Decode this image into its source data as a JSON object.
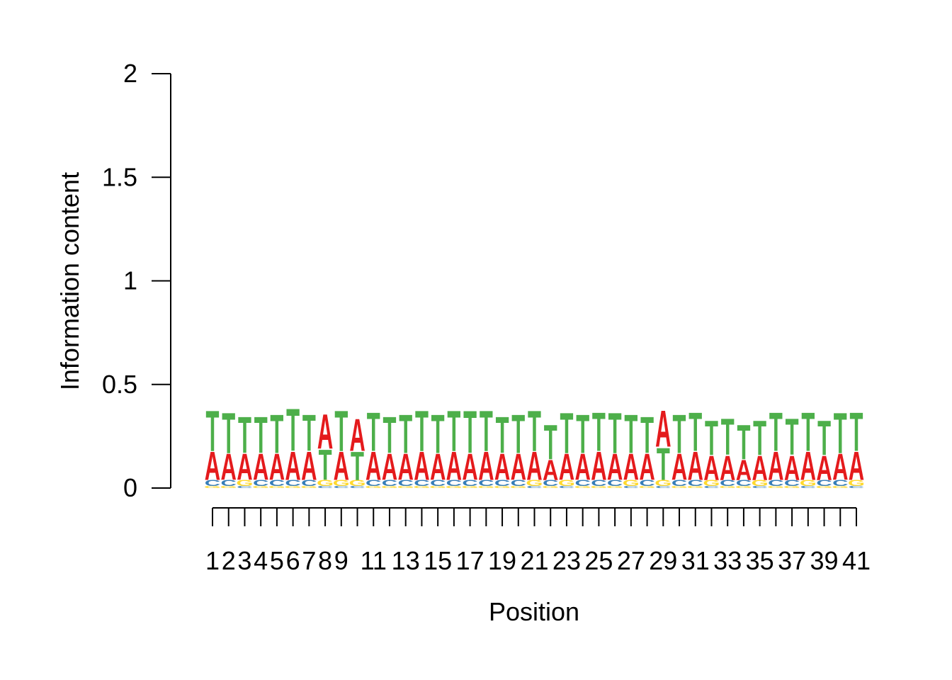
{
  "chart_data": {
    "type": "sequence-logo",
    "xlabel": "Position",
    "ylabel": "Information content",
    "ylim": [
      0,
      2
    ],
    "y_ticks": [
      "0",
      "0.5",
      "1",
      "1.5",
      "2"
    ],
    "x_tick_labels": [
      "1",
      "2",
      "3",
      "4",
      "5",
      "6",
      "7",
      "8",
      "9",
      "11",
      "13",
      "15",
      "17",
      "19",
      "21",
      "23",
      "25",
      "27",
      "29",
      "31",
      "33",
      "35",
      "37",
      "39",
      "41"
    ],
    "positions": [
      1,
      2,
      3,
      4,
      5,
      6,
      7,
      8,
      9,
      10,
      11,
      12,
      13,
      14,
      15,
      16,
      17,
      18,
      19,
      20,
      21,
      22,
      23,
      24,
      25,
      26,
      27,
      28,
      29,
      30,
      31,
      32,
      33,
      34,
      35,
      36,
      37,
      38,
      39,
      40,
      41
    ],
    "colors": {
      "A": "#e41a1c",
      "T": "#4daf4a",
      "C": "#377eb8",
      "G": "#ffd92f"
    },
    "letter_heights": [
      {
        "G": 0.01,
        "C": 0.03,
        "A": 0.14,
        "T": 0.2
      },
      {
        "G": 0.01,
        "C": 0.03,
        "A": 0.13,
        "T": 0.2
      },
      {
        "C": 0.01,
        "G": 0.03,
        "A": 0.13,
        "T": 0.18
      },
      {
        "G": 0.01,
        "C": 0.03,
        "A": 0.13,
        "T": 0.18
      },
      {
        "G": 0.01,
        "C": 0.03,
        "A": 0.13,
        "T": 0.19
      },
      {
        "G": 0.01,
        "C": 0.03,
        "A": 0.14,
        "T": 0.21
      },
      {
        "G": 0.01,
        "C": 0.03,
        "A": 0.14,
        "T": 0.18
      },
      {
        "C": 0.01,
        "G": 0.03,
        "T": 0.15,
        "A": 0.17
      },
      {
        "C": 0.01,
        "G": 0.03,
        "A": 0.14,
        "T": 0.2
      },
      {
        "C": 0.01,
        "G": 0.03,
        "T": 0.14,
        "A": 0.16
      },
      {
        "G": 0.01,
        "C": 0.03,
        "A": 0.14,
        "T": 0.19
      },
      {
        "G": 0.01,
        "C": 0.03,
        "A": 0.13,
        "T": 0.18
      },
      {
        "G": 0.01,
        "C": 0.03,
        "A": 0.13,
        "T": 0.19
      },
      {
        "G": 0.01,
        "C": 0.03,
        "A": 0.14,
        "T": 0.2
      },
      {
        "G": 0.01,
        "C": 0.03,
        "A": 0.13,
        "T": 0.19
      },
      {
        "G": 0.01,
        "C": 0.03,
        "A": 0.14,
        "T": 0.2
      },
      {
        "G": 0.01,
        "C": 0.03,
        "A": 0.13,
        "T": 0.21
      },
      {
        "G": 0.01,
        "C": 0.03,
        "A": 0.14,
        "T": 0.2
      },
      {
        "G": 0.01,
        "C": 0.03,
        "A": 0.13,
        "T": 0.18
      },
      {
        "G": 0.01,
        "C": 0.03,
        "A": 0.13,
        "T": 0.19
      },
      {
        "C": 0.01,
        "G": 0.03,
        "A": 0.14,
        "T": 0.2
      },
      {
        "G": 0.01,
        "C": 0.03,
        "A": 0.1,
        "T": 0.17
      },
      {
        "C": 0.01,
        "G": 0.03,
        "A": 0.13,
        "T": 0.2
      },
      {
        "G": 0.01,
        "C": 0.03,
        "A": 0.13,
        "T": 0.19
      },
      {
        "G": 0.01,
        "C": 0.03,
        "A": 0.14,
        "T": 0.19
      },
      {
        "G": 0.01,
        "C": 0.03,
        "A": 0.13,
        "T": 0.2
      },
      {
        "C": 0.01,
        "G": 0.03,
        "A": 0.13,
        "T": 0.19
      },
      {
        "G": 0.01,
        "C": 0.03,
        "A": 0.13,
        "T": 0.18
      },
      {
        "C": 0.01,
        "G": 0.03,
        "T": 0.16,
        "A": 0.18
      },
      {
        "G": 0.01,
        "C": 0.03,
        "A": 0.13,
        "T": 0.19
      },
      {
        "G": 0.01,
        "C": 0.03,
        "A": 0.14,
        "T": 0.19
      },
      {
        "C": 0.01,
        "G": 0.03,
        "A": 0.12,
        "T": 0.17
      },
      {
        "G": 0.01,
        "C": 0.03,
        "A": 0.12,
        "T": 0.18
      },
      {
        "G": 0.01,
        "C": 0.03,
        "A": 0.1,
        "T": 0.17
      },
      {
        "C": 0.01,
        "G": 0.03,
        "A": 0.12,
        "T": 0.17
      },
      {
        "G": 0.01,
        "C": 0.03,
        "A": 0.14,
        "T": 0.19
      },
      {
        "G": 0.01,
        "C": 0.03,
        "A": 0.12,
        "T": 0.18
      },
      {
        "C": 0.01,
        "G": 0.03,
        "A": 0.14,
        "T": 0.19
      },
      {
        "G": 0.01,
        "C": 0.03,
        "A": 0.12,
        "T": 0.17
      },
      {
        "G": 0.01,
        "C": 0.03,
        "A": 0.13,
        "T": 0.2
      },
      {
        "C": 0.01,
        "G": 0.03,
        "A": 0.14,
        "T": 0.19
      }
    ]
  }
}
